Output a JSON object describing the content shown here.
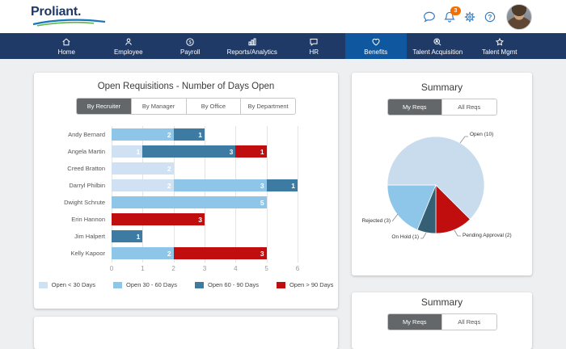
{
  "topbar": {
    "logo_text": "Proliant.",
    "notification_count": "3",
    "icons": [
      "chat-bubble-icon",
      "bell-icon",
      "gear-icon",
      "help-icon",
      "avatar"
    ]
  },
  "colors": {
    "nav_bg": "#1f3a67",
    "nav_active": "#0f58a0",
    "badge": "#f56f00",
    "tab_active": "#63676a",
    "brand_blue": "#1878be",
    "brand_green": "#5cb848"
  },
  "nav": {
    "items": [
      {
        "label": "Home",
        "icon": "home",
        "active": false
      },
      {
        "label": "Employee",
        "icon": "person",
        "active": false
      },
      {
        "label": "Payroll",
        "icon": "dollar-circle",
        "active": false
      },
      {
        "label": "Reports/Analytics",
        "icon": "bar-chart",
        "active": false
      },
      {
        "label": "HR",
        "icon": "chat-square",
        "active": false
      },
      {
        "label": "Benefits",
        "icon": "heart",
        "active": true
      },
      {
        "label": "Talent Acquisition",
        "icon": "search-person",
        "active": false
      },
      {
        "label": "Talent Mgmt",
        "icon": "star",
        "active": false
      }
    ]
  },
  "cards": {
    "requisitions": {
      "title": "Open Requisitions - Number of Days Open",
      "tabs": [
        {
          "label": "By Recruiter",
          "active": true
        },
        {
          "label": "By Manager",
          "active": false
        },
        {
          "label": "By Office",
          "active": false
        },
        {
          "label": "By Department",
          "active": false
        }
      ]
    },
    "summary_top": {
      "title": "Summary",
      "tabs": [
        {
          "label": "My Reqs",
          "active": true
        },
        {
          "label": "All Reqs",
          "active": false
        }
      ]
    },
    "summary_bottom": {
      "title": "Summary",
      "tabs": [
        {
          "label": "My Reqs",
          "active": true
        },
        {
          "label": "All Reqs",
          "active": false
        }
      ]
    }
  },
  "chart_data": [
    {
      "type": "bar",
      "orientation": "horizontal",
      "stacked": true,
      "title": "Open Requisitions - Number of Days Open",
      "categories": [
        "Andy Bernard",
        "Angela Martin",
        "Creed Bratton",
        "Darryl Philbin",
        "Dwight Schrute",
        "Erin Hannon",
        "Jim Halpert",
        "Kelly Kapoor"
      ],
      "series": [
        {
          "name": "Open < 30 Days",
          "color": "#cfe1f2",
          "values": [
            0,
            1,
            2,
            2,
            0,
            0,
            0,
            0
          ]
        },
        {
          "name": "Open 30 - 60 Days",
          "color": "#8ec6ea",
          "values": [
            2,
            0,
            0,
            3,
            5,
            0,
            0,
            2
          ]
        },
        {
          "name": "Open 60 - 90 Days",
          "color": "#3d7ba3",
          "values": [
            1,
            3,
            0,
            1,
            0,
            0,
            1,
            0
          ]
        },
        {
          "name": "Open > 90 Days",
          "color": "#c00d0d",
          "values": [
            0,
            1,
            0,
            0,
            0,
            3,
            0,
            3
          ]
        }
      ],
      "xlim": [
        0,
        6
      ],
      "ticks": [
        0,
        1,
        2,
        3,
        4,
        5,
        6
      ],
      "grid": "vertical",
      "value_labels": true,
      "legend_position": "bottom"
    },
    {
      "type": "pie",
      "title": "Summary",
      "start_angle_clockwise_from_top": 135,
      "slices": [
        {
          "label": "Pending Approval (2)",
          "value": 2,
          "color": "#c00d0d"
        },
        {
          "label": "On Hold (1)",
          "value": 1,
          "color": "#355f74"
        },
        {
          "label": "Rejected (3)",
          "value": 3,
          "color": "#8ec6ea"
        },
        {
          "label": "Open (10)",
          "value": 10,
          "color": "#c9dcee"
        }
      ]
    }
  ]
}
